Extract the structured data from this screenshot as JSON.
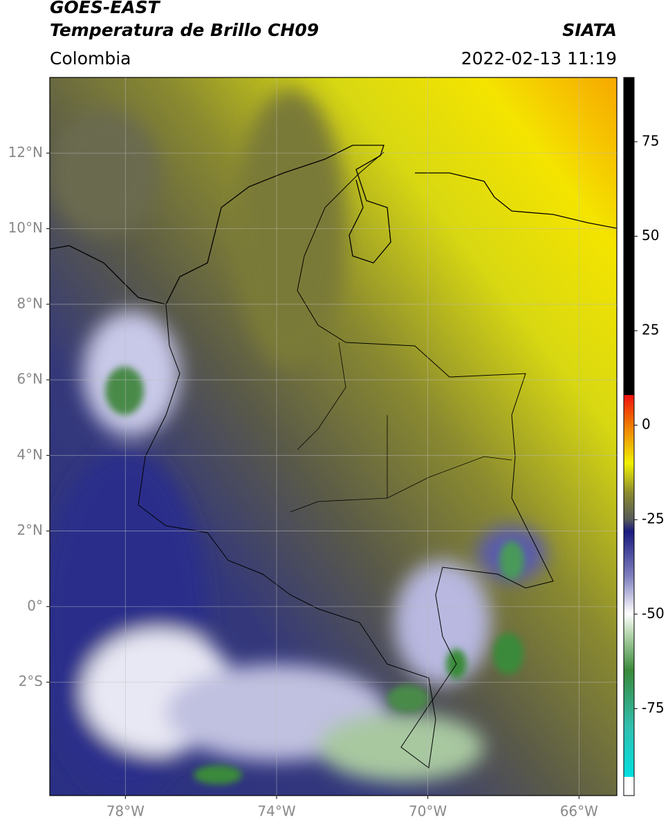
{
  "header": {
    "title_lines": [
      "GOES-EAST",
      "Temperatura de Brillo CH09"
    ],
    "region": "Colombia",
    "source": "SIATA",
    "timestamp": "2022-02-13 11:19"
  },
  "map": {
    "xlim": [
      -80,
      -65
    ],
    "ylim": [
      -5,
      14
    ],
    "lat_ticks": [
      {
        "value": 12,
        "label": "12°N"
      },
      {
        "value": 10,
        "label": "10°N"
      },
      {
        "value": 8,
        "label": "8°N"
      },
      {
        "value": 6,
        "label": "6°N"
      },
      {
        "value": 4,
        "label": "4°N"
      },
      {
        "value": 2,
        "label": "2°N"
      },
      {
        "value": 0,
        "label": "0°"
      },
      {
        "value": -2,
        "label": "2°S"
      }
    ],
    "lon_ticks": [
      {
        "value": -78,
        "label": "78°W"
      },
      {
        "value": -74,
        "label": "74°W"
      },
      {
        "value": -70,
        "label": "70°W"
      },
      {
        "value": -66,
        "label": "66°W"
      }
    ],
    "grid": true
  },
  "colorbar": {
    "lim": [
      -98,
      92
    ],
    "ticks": [
      75,
      50,
      25,
      0,
      -25,
      -50,
      -75
    ]
  }
}
